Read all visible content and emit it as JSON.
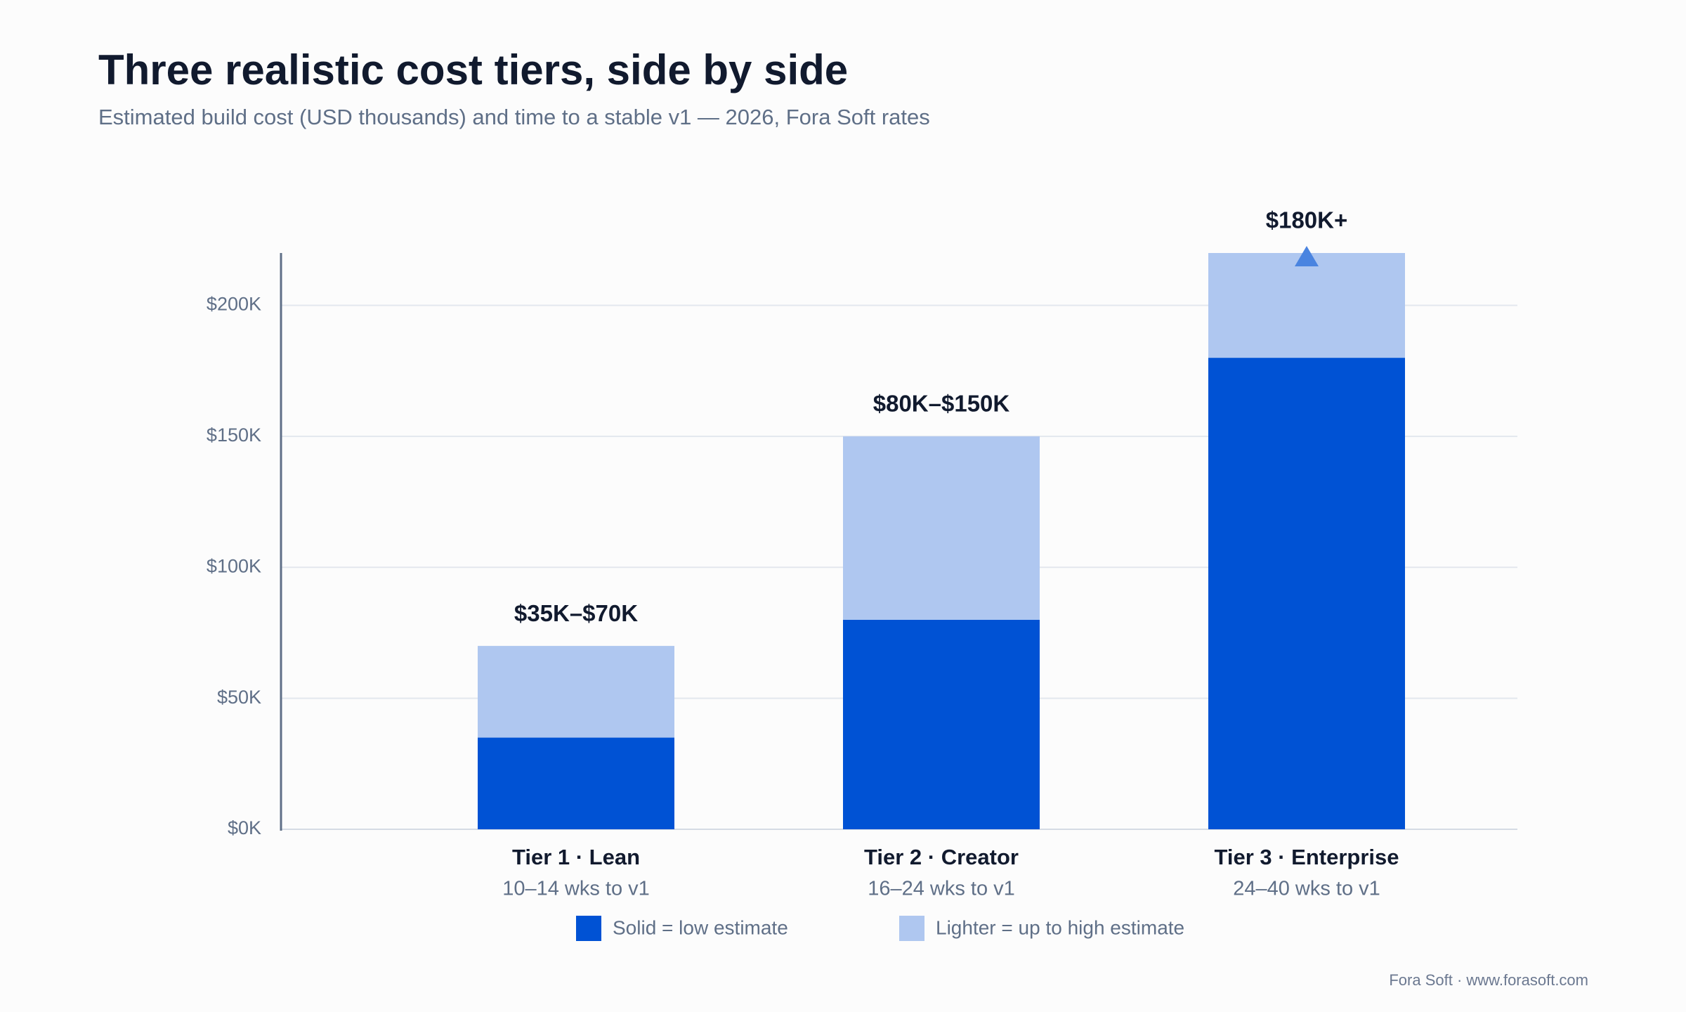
{
  "chart_data": {
    "type": "stacked_bar",
    "title": "Three realistic cost tiers, side by side",
    "subtitle": "Estimated build cost (USD thousands) and time to a stable v1 — 2026, Fora Soft rates",
    "categories": [
      "Tier 1 · Lean",
      "Tier 2 · Creator",
      "Tier 3 · Enterprise"
    ],
    "category_sublabels": [
      "10–14 wks to v1",
      "16–24 wks to v1",
      "24–40 wks to v1"
    ],
    "range_labels": [
      "$35K–$70K",
      "$80K–$150K",
      "$180K+"
    ],
    "series": [
      {
        "name": "Solid = low estimate",
        "color": "#0052d4",
        "values": [
          35,
          80,
          180
        ]
      },
      {
        "name": "Lighter = up to high estimate",
        "color": "#afc7f0",
        "values": [
          35,
          70,
          40
        ]
      }
    ],
    "ylim": [
      0,
      220
    ],
    "yticks": [
      {
        "value": 0,
        "label": "$0K"
      },
      {
        "value": 50,
        "label": "$50K"
      },
      {
        "value": 100,
        "label": "$100K"
      },
      {
        "value": 150,
        "label": "$150K"
      },
      {
        "value": 200,
        "label": "$200K"
      }
    ],
    "grid": true,
    "legend": "bottom",
    "footer": "Fora Soft · www.forasoft.com"
  }
}
